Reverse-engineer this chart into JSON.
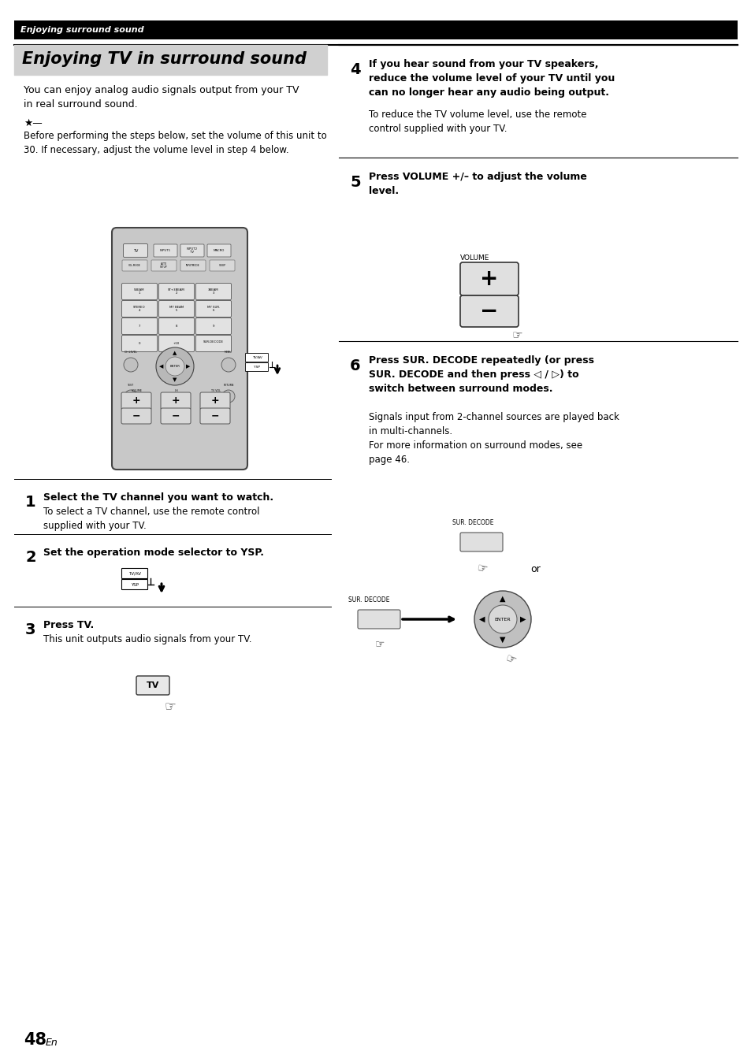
{
  "page_num": "48",
  "page_suffix": " En",
  "header_bg": "#000000",
  "header_text": "Enjoying surround sound",
  "header_text_color": "#ffffff",
  "title_bg": "#d0d0d0",
  "title_text": "Enjoying TV in surround sound",
  "body_bg": "#ffffff",
  "main_text_color": "#000000",
  "intro_text": "You can enjoy analog audio signals output from your TV\nin real surround sound.",
  "tip_text": "Before performing the steps below, set the volume of this unit to\n30. If necessary, adjust the volume level in step 4 below.",
  "step1_num": "1",
  "step1_bold": "Select the TV channel you want to watch.",
  "step1_body": "To select a TV channel, use the remote control\nsupplied with your TV.",
  "step2_num": "2",
  "step2_bold": "Set the operation mode selector to YSP.",
  "step3_num": "3",
  "step3_bold": "Press TV.",
  "step3_body": "This unit outputs audio signals from your TV.",
  "step4_num": "4",
  "step4_bold": "If you hear sound from your TV speakers,\nreduce the volume level of your TV until you\ncan no longer hear any audio being output.",
  "step4_body": "To reduce the TV volume level, use the remote\ncontrol supplied with your TV.",
  "step5_num": "5",
  "step5_bold": "Press VOLUME +/– to adjust the volume\nlevel.",
  "step6_num": "6",
  "step6_bold": "Press SUR. DECODE repeatedly (or press\nSUR. DECODE and then press ◁ / ▷) to\nswitch between surround modes.",
  "step6_body": "Signals input from 2-channel sources are played back\nin multi-channels.\nFor more information on surround modes, see\npage 46.",
  "or_text": "or"
}
